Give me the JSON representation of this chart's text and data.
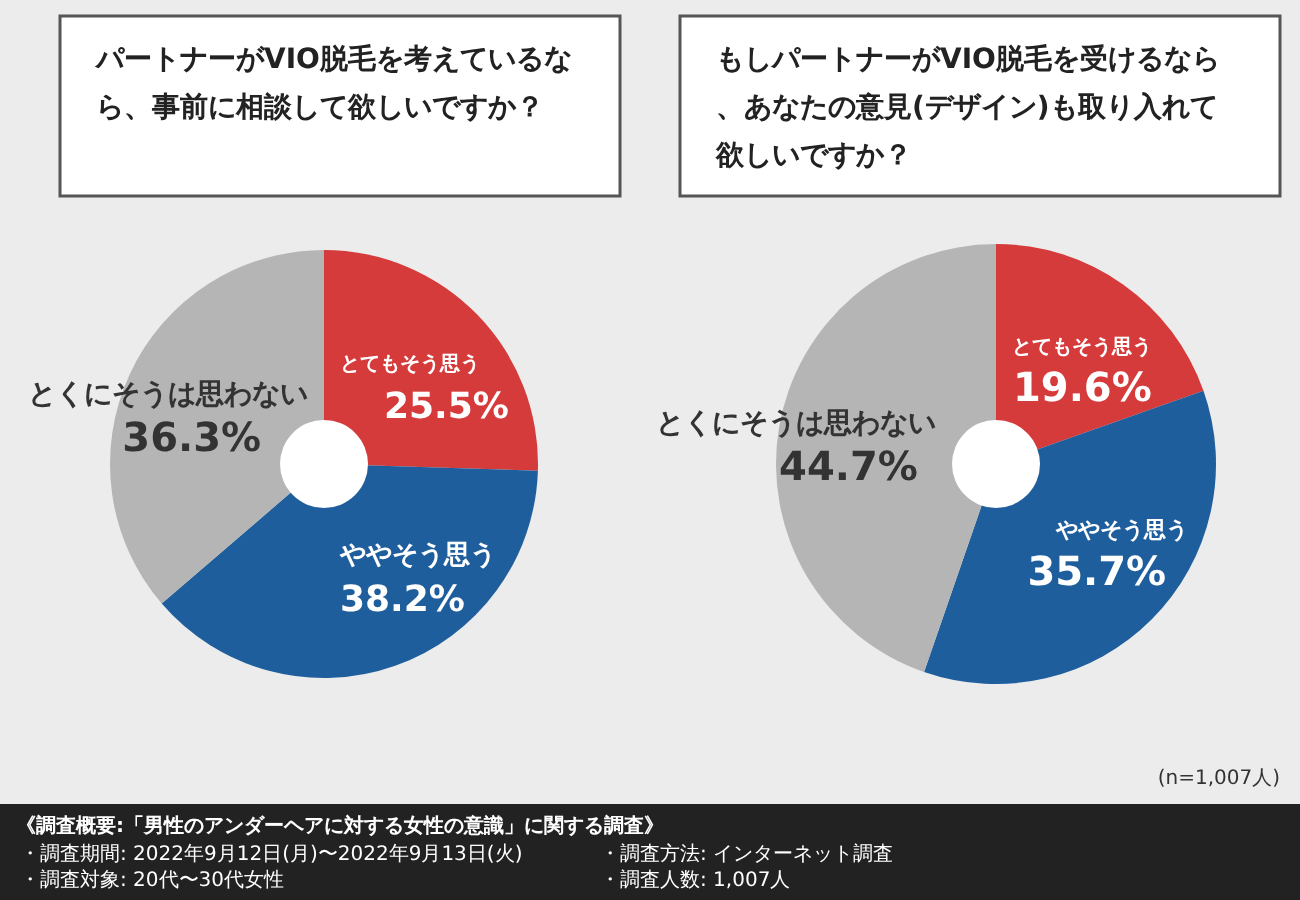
{
  "chart_data": [
    {
      "type": "donut",
      "title": "パートナーがVIO脱毛を考えているなら、事前に相談して欲しいですか？",
      "categories": [
        "とてもそう思う",
        "ややそう思う",
        "とくにそうは思わない"
      ],
      "values": [
        25.5,
        38.2,
        36.3
      ],
      "value_labels": [
        "25.5%",
        "38.2%",
        "36.3%"
      ],
      "colors": [
        "#d63b3b",
        "#1f5e9c",
        "#b5b5b5"
      ],
      "annotations": [
        "《調査概要:「男性のアンダーヘアに対する女性の意識」に関する調査》",
        "・調査期間: 2022年9月12日(月)〜2022年9月13日(火)",
        "・調査方法: インターネット調査",
        "・調査対象: 20代〜30代女性",
        "・調査人数: 1,007人"
      ]
    },
    {
      "type": "donut",
      "title": "もしパートナーがVIO脱毛を受けるなら、あなたの意見(デザイン)も取り入れて欲しいですか？",
      "categories": [
        "とてもそう思う",
        "ややそう思う",
        "とくにそうは思わない"
      ],
      "values": [
        19.6,
        35.7,
        44.7
      ],
      "value_labels": [
        "19.6%",
        "35.7%",
        "44.7%"
      ],
      "colors": [
        "#d63b3b",
        "#1f5e9c",
        "#b5b5b5"
      ],
      "annotations": [
        "(n=1,007人)"
      ]
    }
  ]
}
